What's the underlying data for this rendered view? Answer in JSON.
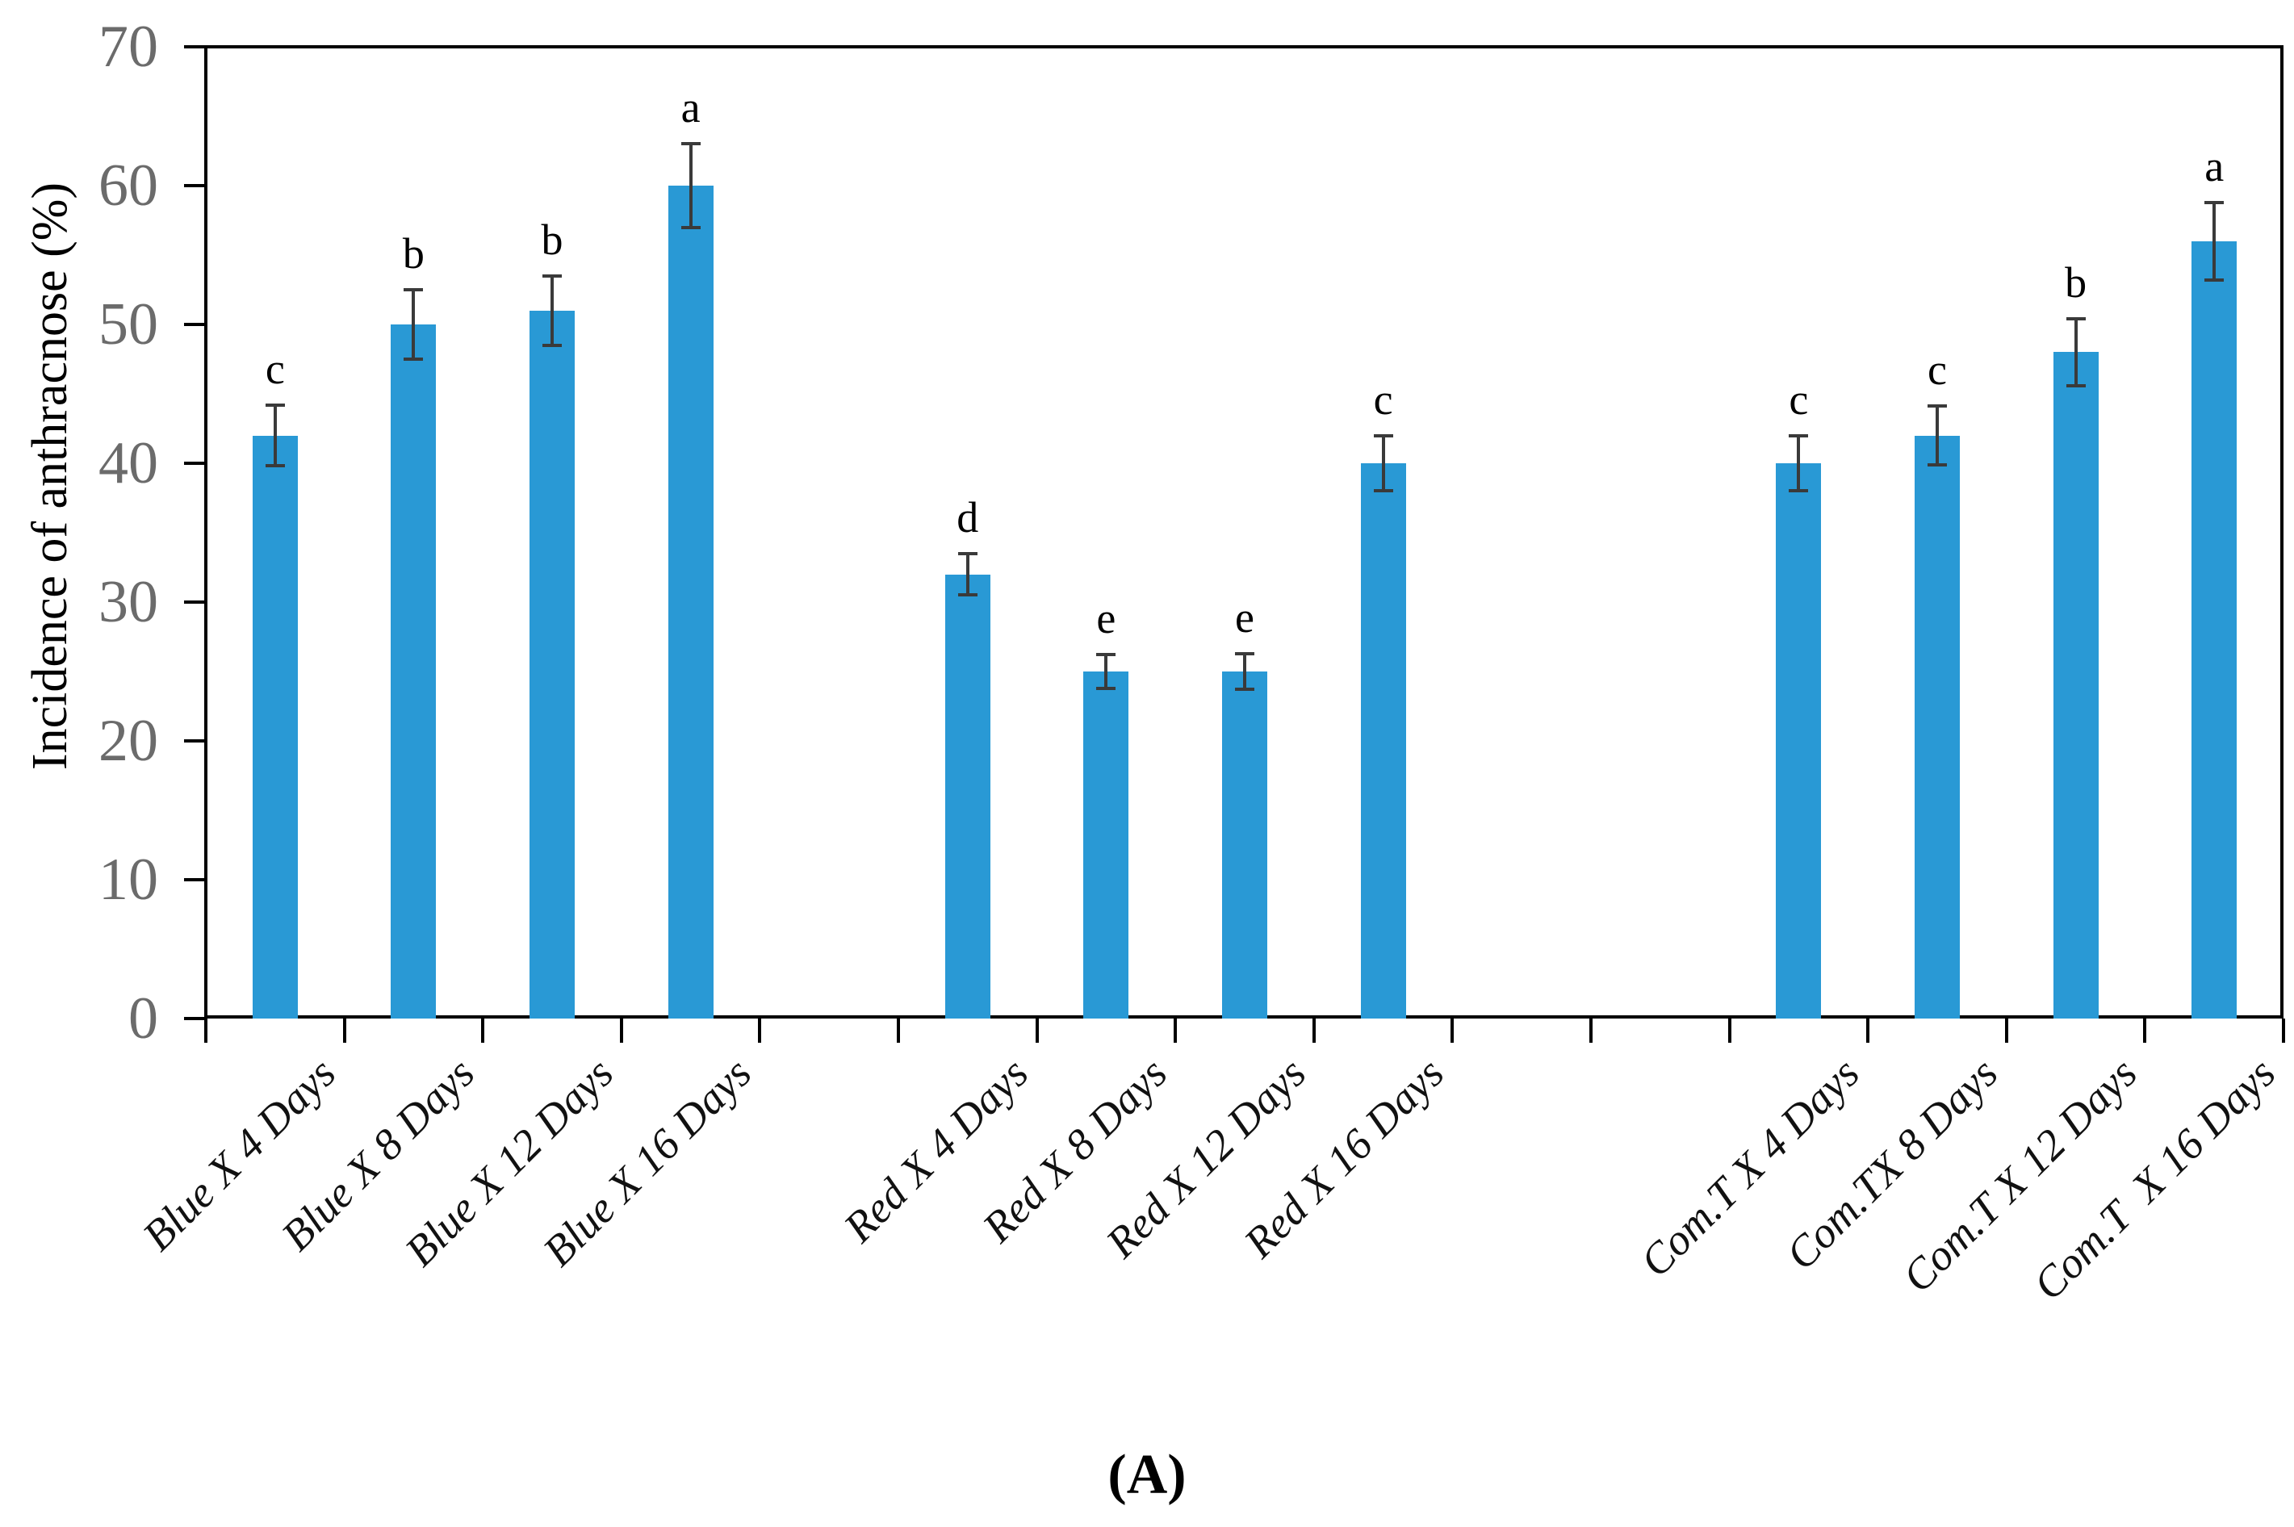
{
  "figure": {
    "caption": "(A)"
  },
  "chart_data": {
    "type": "bar",
    "title": "",
    "xlabel": "",
    "ylabel": "Incidence of anthracnose (%)",
    "ylim": [
      0,
      70
    ],
    "yticks": [
      0,
      10,
      20,
      30,
      40,
      50,
      60,
      70
    ],
    "grid": false,
    "legend": false,
    "categories": [
      "Blue X 4 Days",
      "Blue X 8 Days",
      "Blue X 12 Days",
      "Blue X 16 Days",
      "Red X 4 Days",
      "Red X 8 Days",
      "Red X 12 Days",
      "Red X 16 Days",
      "Com.T X 4 Days",
      "Com.TX 8 Days",
      "Com.T X 12 Days",
      "Com.T  X 16 Days"
    ],
    "values": [
      42,
      50,
      51,
      60,
      32,
      25,
      25,
      40,
      40,
      42,
      48,
      56
    ],
    "error_bars": [
      2.2,
      2.5,
      2.5,
      3,
      1.5,
      1.2,
      1.3,
      2,
      2,
      2.1,
      2.4,
      2.8
    ],
    "sig_letters": [
      "c",
      "b",
      "b",
      "a",
      "d",
      "e",
      "e",
      "c",
      "c",
      "c",
      "b",
      "a"
    ],
    "slots": [
      0,
      1,
      2,
      3,
      5,
      6,
      7,
      8,
      11,
      12,
      13,
      14
    ],
    "total_slots": 15,
    "colors": {
      "bar": "#2999D5",
      "axis": "#000000",
      "ytick_label": "#6b6b6b",
      "error_bar": "#3a3a3a",
      "background": "#ffffff"
    }
  }
}
